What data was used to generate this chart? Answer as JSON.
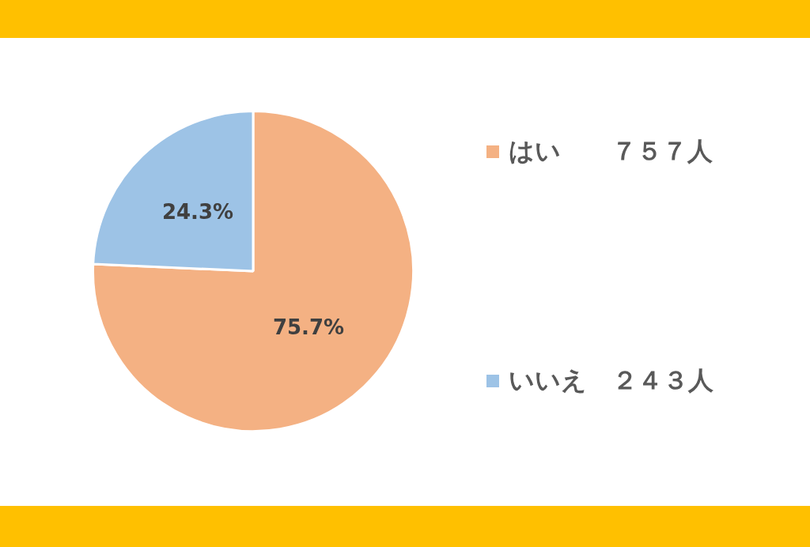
{
  "chart_data": {
    "type": "pie",
    "categories": [
      "はい　　７５７人",
      "いいえ　２４３人"
    ],
    "values": [
      75.7,
      24.3
    ],
    "colors": [
      "#f4b183",
      "#9dc3e6"
    ],
    "value_labels": [
      "75.7%",
      "24.3%"
    ],
    "legend": "right"
  }
}
